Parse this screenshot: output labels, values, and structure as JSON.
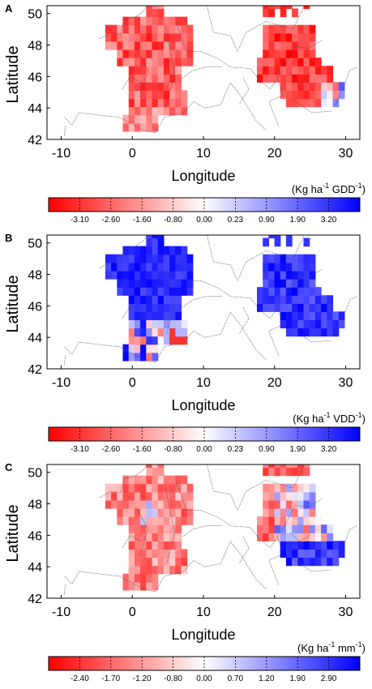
{
  "panels": [
    {
      "letter": "A",
      "ylabel": "Latitude",
      "xlabel": "Longitude",
      "x_ticks": [
        "-10",
        "0",
        "10",
        "20",
        "30"
      ],
      "y_ticks": [
        "42",
        "44",
        "46",
        "48",
        "50"
      ],
      "unit_label": {
        "pre": "(Kg ha",
        "e1": "-1",
        "mid": " GDD",
        "e2": "-1",
        "post": ")"
      },
      "colorbar_ticks": [
        "-3.10",
        "-2.60",
        "-1.60",
        "-0.80",
        "0.00",
        "0.23",
        "0.90",
        "1.90",
        "3.20"
      ]
    },
    {
      "letter": "B",
      "ylabel": "Latitude",
      "xlabel": "Longitude",
      "x_ticks": [
        "-10",
        "0",
        "10",
        "20",
        "30"
      ],
      "y_ticks": [
        "42",
        "44",
        "46",
        "48",
        "50"
      ],
      "unit_label": {
        "pre": "(Kg ha",
        "e1": "-1",
        "mid": " VDD",
        "e2": "-1",
        "post": ")"
      },
      "colorbar_ticks": [
        "-3.10",
        "-2.60",
        "-1.60",
        "-0.80",
        "0.00",
        "0.23",
        "0.90",
        "1.90",
        "3.20"
      ]
    },
    {
      "letter": "C",
      "ylabel": "Latitude",
      "xlabel": "Longitude",
      "x_ticks": [
        "-10",
        "0",
        "10",
        "20",
        "30"
      ],
      "y_ticks": [
        "42",
        "44",
        "46",
        "48",
        "50"
      ],
      "unit_label": {
        "pre": "(Kg ha",
        "e1": "-1",
        "mid": " mm",
        "e2": "-1",
        "post": ")"
      },
      "colorbar_ticks": [
        "-2.40",
        "-1.70",
        "-1.20",
        "-0.80",
        "0.00",
        "0.70",
        "1.20",
        "1.90",
        "2.90"
      ]
    }
  ],
  "map": {
    "lon_range": [
      -12,
      32
    ],
    "lat_range": [
      42,
      50.5
    ],
    "colormap": {
      "negative": "#ff0000",
      "neutral": "#ffffff",
      "positive": "#0000ff"
    }
  }
}
